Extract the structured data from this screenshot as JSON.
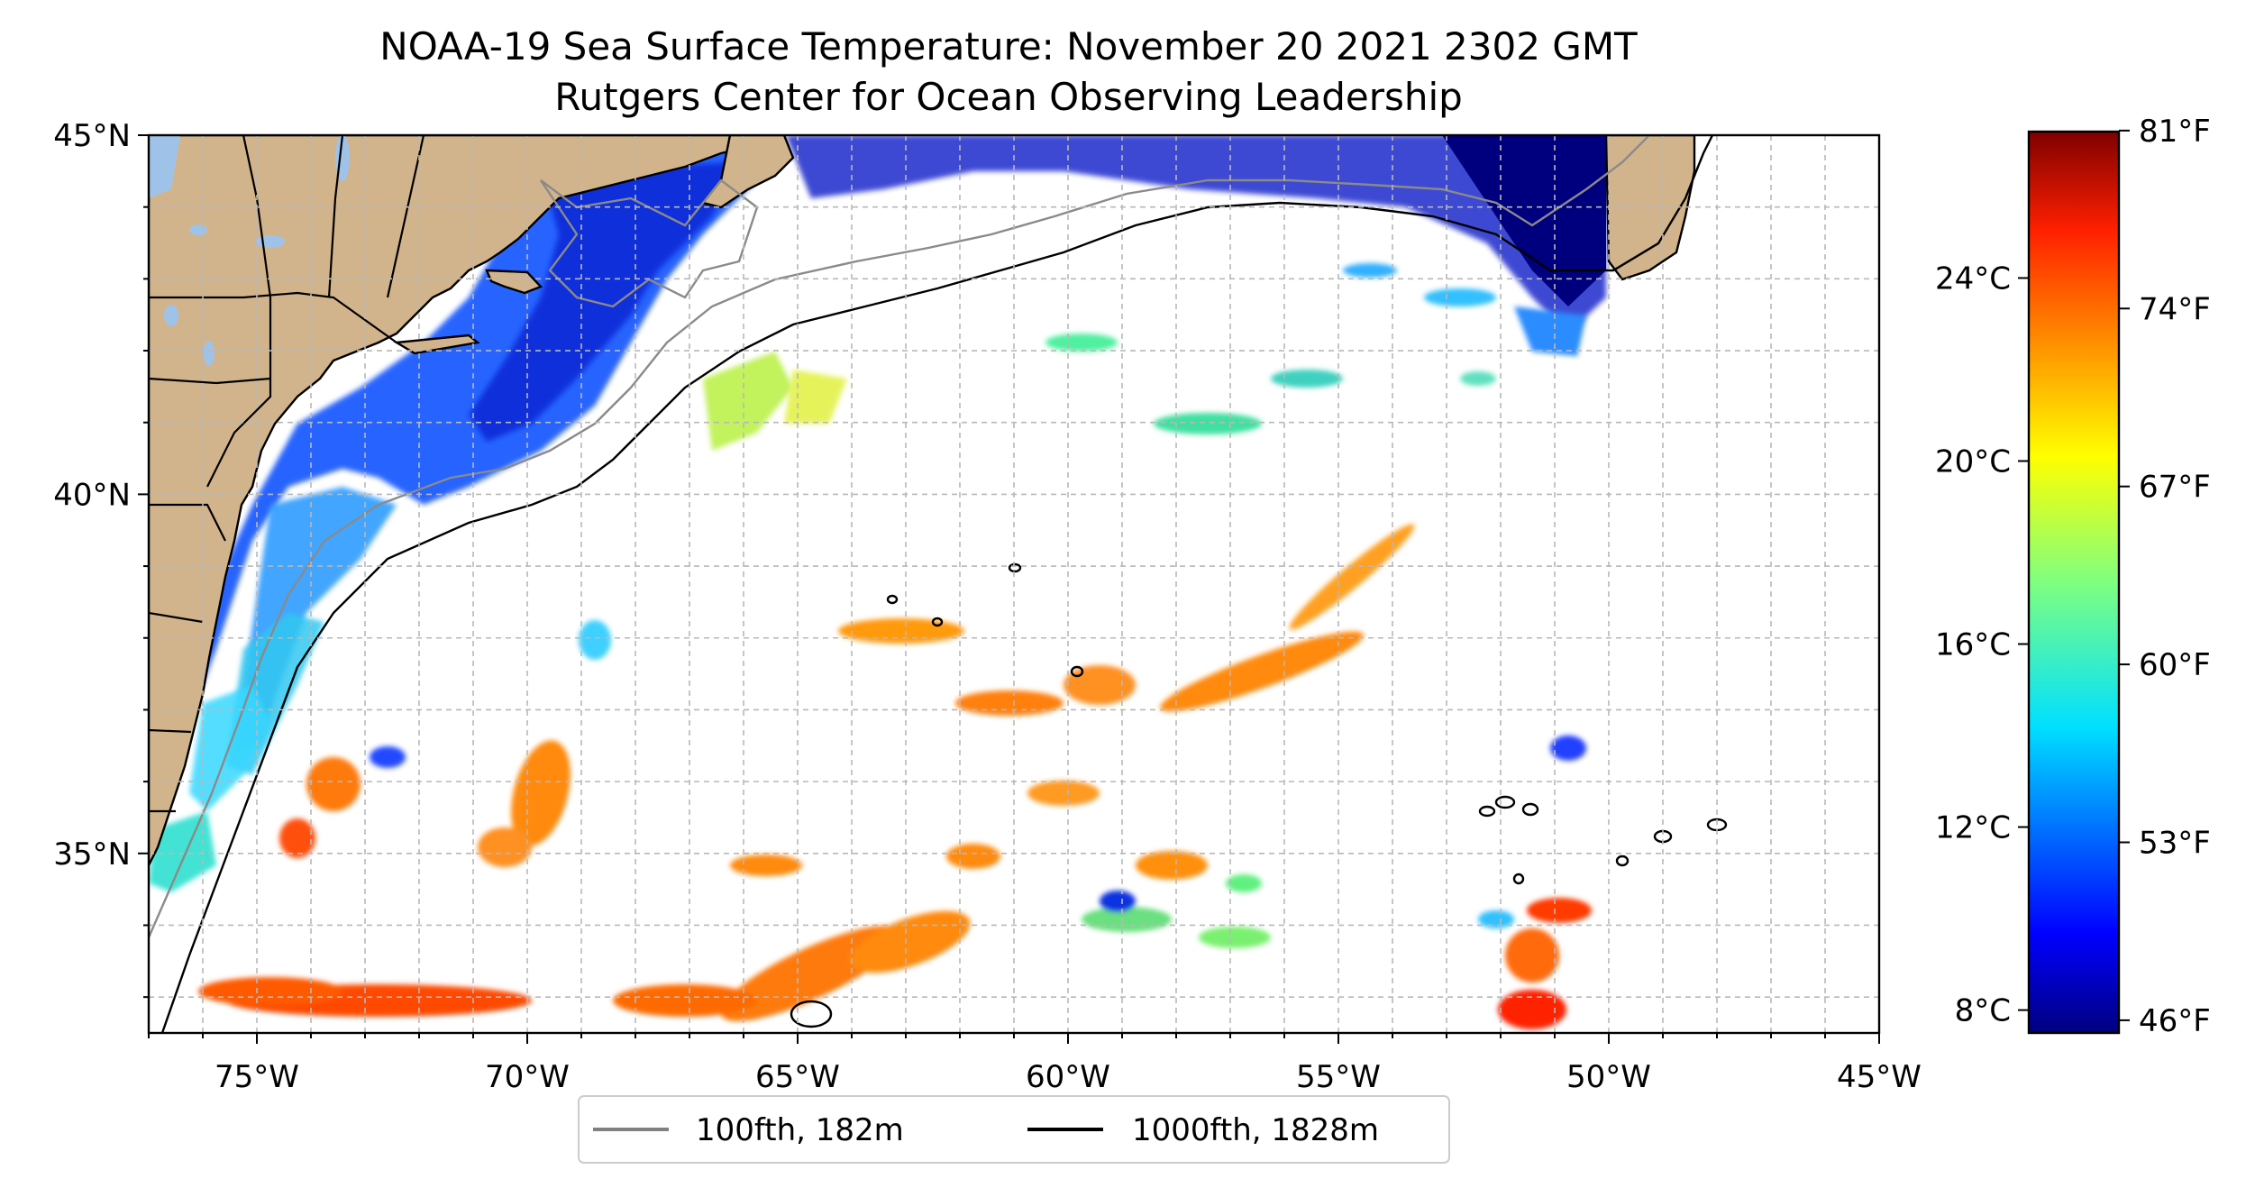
{
  "title": {
    "line1": "NOAA-19 Sea Surface Temperature: November 20 2021 2302 GMT",
    "line2": "Rutgers Center for Ocean Observing Leadership"
  },
  "map": {
    "lon_range": [
      -77,
      -45
    ],
    "lat_range": [
      32.5,
      45
    ],
    "x_ticks": [
      "75°W",
      "70°W",
      "65°W",
      "60°W",
      "55°W",
      "50°W",
      "45°W"
    ],
    "y_ticks": [
      "35°N",
      "40°N",
      "45°N"
    ],
    "gridlines": true,
    "land_color": "#d2b48c",
    "lake_color": "#9fc3e8"
  },
  "legend": {
    "position": "bottom-center",
    "items": [
      {
        "label": "100fth, 182m",
        "color": "#808080"
      },
      {
        "label": "1000fth, 1828m",
        "color": "#000000"
      }
    ]
  },
  "colorbar": {
    "colormap": "jet",
    "celsius_ticks": [
      "24°C",
      "20°C",
      "16°C",
      "12°C",
      "8°C"
    ],
    "fahrenheit_ticks": [
      "81°F",
      "74°F",
      "67°F",
      "60°F",
      "53°F",
      "46°F"
    ]
  }
}
